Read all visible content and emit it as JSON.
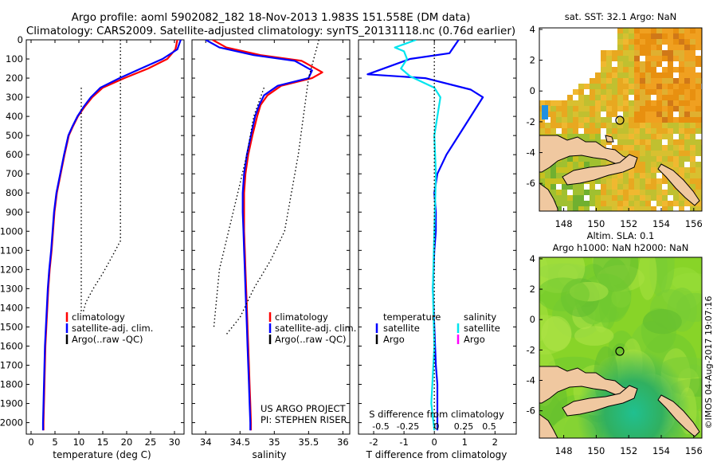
{
  "header": {
    "line1": "Argo profile: aoml 5902082_182 18-Nov-2013 1.983S 151.558E (DM data)",
    "line2": "Climatology: CARS2009. Satellite-adjusted climatology: synTS_20131118.nc (0.76d earlier)"
  },
  "side_stamp": "©IMOS 04-Aug-2017 19:07:16",
  "colors": {
    "climatology": "#ff0000",
    "satellite": "#0000ff",
    "argo": "#000000",
    "sal_satellite": "#00e5ee",
    "sal_argo": "#ff00ff",
    "land": "#f0c8a0",
    "nodata": "#ffffff"
  },
  "chart_data": [
    {
      "id": "temperature",
      "type": "line",
      "xlabel": "temperature (deg C)",
      "ylabel": "",
      "xlim": [
        -1,
        32
      ],
      "ylim": [
        2060,
        0
      ],
      "xticks": [
        0,
        5,
        10,
        15,
        20,
        25,
        30
      ],
      "yticks": [
        0,
        100,
        200,
        300,
        400,
        500,
        600,
        700,
        800,
        900,
        1000,
        1100,
        1200,
        1300,
        1400,
        1500,
        1600,
        1700,
        1800,
        1900,
        2000
      ],
      "legend": [
        "climatology",
        "satellite-adj. clim.",
        "Argo(..raw -QC)"
      ],
      "series": [
        {
          "name": "climatology",
          "color": "#ff0000",
          "points": [
            [
              30.6,
              0
            ],
            [
              30.2,
              50
            ],
            [
              28.5,
              100
            ],
            [
              24.5,
              150
            ],
            [
              19.5,
              200
            ],
            [
              15.0,
              250
            ],
            [
              12.8,
              300
            ],
            [
              11.2,
              350
            ],
            [
              9.8,
              400
            ],
            [
              8.8,
              450
            ],
            [
              7.9,
              500
            ],
            [
              7.0,
              600
            ],
            [
              6.2,
              700
            ],
            [
              5.4,
              800
            ],
            [
              4.9,
              900
            ],
            [
              4.6,
              1000
            ],
            [
              4.3,
              1100
            ],
            [
              3.9,
              1200
            ],
            [
              3.6,
              1300
            ],
            [
              3.4,
              1400
            ],
            [
              3.2,
              1500
            ],
            [
              3.0,
              1600
            ],
            [
              2.9,
              1700
            ],
            [
              2.8,
              1800
            ],
            [
              2.7,
              1900
            ],
            [
              2.6,
              2000
            ],
            [
              2.6,
              2040
            ]
          ]
        },
        {
          "name": "satellite-adj. clim.",
          "color": "#0000ff",
          "points": [
            [
              31.3,
              0
            ],
            [
              30.6,
              50
            ],
            [
              27.5,
              100
            ],
            [
              23.0,
              150
            ],
            [
              18.5,
              200
            ],
            [
              14.5,
              250
            ],
            [
              12.5,
              300
            ],
            [
              11.0,
              350
            ],
            [
              9.7,
              400
            ],
            [
              8.7,
              450
            ],
            [
              7.8,
              500
            ],
            [
              6.9,
              600
            ],
            [
              6.1,
              700
            ],
            [
              5.3,
              800
            ],
            [
              4.8,
              900
            ],
            [
              4.5,
              1000
            ],
            [
              4.2,
              1100
            ],
            [
              3.8,
              1200
            ],
            [
              3.5,
              1300
            ],
            [
              3.3,
              1400
            ],
            [
              3.1,
              1500
            ],
            [
              2.9,
              1600
            ],
            [
              2.8,
              1700
            ],
            [
              2.7,
              1800
            ],
            [
              2.6,
              1900
            ],
            [
              2.5,
              2000
            ],
            [
              2.5,
              2040
            ]
          ]
        },
        {
          "name": "Argo raw-QC bound",
          "color": "#000000",
          "dotted": true,
          "points": [
            [
              18.7,
              0
            ],
            [
              18.7,
              1050
            ],
            [
              17.0,
              1130
            ],
            [
              15.0,
              1220
            ],
            [
              13.0,
              1300
            ],
            [
              11.5,
              1370
            ],
            [
              10.8,
              1430
            ]
          ]
        },
        {
          "name": "Argo raw-QC bound",
          "color": "#000000",
          "dotted": true,
          "points": [
            [
              10.5,
              250
            ],
            [
              10.5,
              1430
            ]
          ]
        }
      ]
    },
    {
      "id": "salinity",
      "type": "line",
      "xlabel": "salinity",
      "ylabel": "",
      "xlim": [
        33.8,
        36.1
      ],
      "ylim": [
        2060,
        0
      ],
      "xticks": [
        34,
        34.5,
        35,
        35.5,
        36
      ],
      "legend": [
        "climatology",
        "satellite-adj. clim.",
        "Argo(..raw -QC)"
      ],
      "annotations": [
        "US ARGO PROJECT",
        "PI: STEPHEN RISER"
      ],
      "series": [
        {
          "name": "climatology",
          "color": "#ff0000",
          "points": [
            [
              34.1,
              0
            ],
            [
              34.3,
              40
            ],
            [
              34.8,
              80
            ],
            [
              35.4,
              110
            ],
            [
              35.7,
              170
            ],
            [
              35.55,
              200
            ],
            [
              35.1,
              240
            ],
            [
              34.9,
              290
            ],
            [
              34.8,
              340
            ],
            [
              34.75,
              400
            ],
            [
              34.68,
              500
            ],
            [
              34.62,
              600
            ],
            [
              34.58,
              700
            ],
            [
              34.56,
              800
            ],
            [
              34.56,
              900
            ],
            [
              34.56,
              1000
            ],
            [
              34.57,
              1100
            ],
            [
              34.58,
              1200
            ],
            [
              34.59,
              1300
            ],
            [
              34.6,
              1400
            ],
            [
              34.61,
              1500
            ],
            [
              34.62,
              1600
            ],
            [
              34.63,
              1700
            ],
            [
              34.64,
              1800
            ],
            [
              34.65,
              1900
            ],
            [
              34.66,
              2000
            ],
            [
              34.66,
              2040
            ]
          ]
        },
        {
          "name": "satellite-adj. clim.",
          "color": "#0000ff",
          "points": [
            [
              34.0,
              0
            ],
            [
              34.2,
              40
            ],
            [
              34.7,
              80
            ],
            [
              35.3,
              110
            ],
            [
              35.55,
              160
            ],
            [
              35.5,
              200
            ],
            [
              35.05,
              240
            ],
            [
              34.85,
              290
            ],
            [
              34.78,
              340
            ],
            [
              34.72,
              400
            ],
            [
              34.66,
              500
            ],
            [
              34.6,
              600
            ],
            [
              34.56,
              700
            ],
            [
              34.54,
              800
            ],
            [
              34.54,
              900
            ],
            [
              34.55,
              1000
            ],
            [
              34.56,
              1100
            ],
            [
              34.57,
              1200
            ],
            [
              34.58,
              1300
            ],
            [
              34.59,
              1400
            ],
            [
              34.6,
              1500
            ],
            [
              34.61,
              1600
            ],
            [
              34.62,
              1700
            ],
            [
              34.63,
              1800
            ],
            [
              34.64,
              1900
            ],
            [
              34.65,
              2000
            ],
            [
              34.65,
              2040
            ]
          ]
        },
        {
          "name": "Argo raw-QC bound",
          "color": "#000000",
          "dotted": true,
          "points": [
            [
              35.65,
              0
            ],
            [
              35.5,
              200
            ],
            [
              35.35,
              600
            ],
            [
              35.25,
              800
            ],
            [
              35.15,
              1000
            ],
            [
              34.95,
              1150
            ],
            [
              34.7,
              1300
            ],
            [
              34.5,
              1450
            ],
            [
              34.3,
              1540
            ]
          ]
        },
        {
          "name": "Argo raw-QC bound",
          "color": "#000000",
          "dotted": true,
          "points": [
            [
              34.85,
              250
            ],
            [
              34.7,
              400
            ],
            [
              34.6,
              600
            ],
            [
              34.4,
              900
            ],
            [
              34.2,
              1200
            ],
            [
              34.12,
              1500
            ]
          ]
        }
      ]
    },
    {
      "id": "difference",
      "type": "line",
      "xlabel": "T difference from climatology",
      "top_label": "S difference from climatology",
      "xlim": [
        -2.5,
        2.7
      ],
      "ylim": [
        2060,
        0
      ],
      "xticks": [
        -2,
        -1,
        0,
        1,
        2
      ],
      "sticks": [
        "-0.5",
        "-0.25",
        "0",
        "0.25",
        "0.5"
      ],
      "legend_temperature": [
        "temperature",
        "satellite",
        "Argo"
      ],
      "legend_salinity": [
        "salinity",
        "satellite",
        "Argo"
      ],
      "series": [
        {
          "name": "T satellite",
          "color": "#0000ff",
          "points": [
            [
              0.8,
              0
            ],
            [
              0.5,
              70
            ],
            [
              -0.8,
              100
            ],
            [
              -2.2,
              180
            ],
            [
              -0.3,
              200
            ],
            [
              1.2,
              260
            ],
            [
              1.6,
              300
            ],
            [
              1.2,
              400
            ],
            [
              0.8,
              500
            ],
            [
              0.4,
              600
            ],
            [
              0.1,
              700
            ],
            [
              0.0,
              800
            ],
            [
              0.05,
              900
            ],
            [
              0.05,
              1000
            ],
            [
              0.0,
              1100
            ],
            [
              -0.05,
              1300
            ],
            [
              0.0,
              1500
            ],
            [
              0.05,
              1700
            ],
            [
              0.1,
              1800
            ],
            [
              0.1,
              2040
            ]
          ]
        },
        {
          "name": "S satellite",
          "color": "#00e5ee",
          "points": [
            [
              -0.6,
              0
            ],
            [
              -1.3,
              40
            ],
            [
              -1.0,
              60
            ],
            [
              -0.9,
              100
            ],
            [
              -1.1,
              150
            ],
            [
              -0.8,
              190
            ],
            [
              0.0,
              250
            ],
            [
              0.2,
              300
            ],
            [
              0.1,
              400
            ],
            [
              0.0,
              500
            ],
            [
              0.05,
              700
            ],
            [
              0.0,
              1000
            ],
            [
              -0.05,
              1300
            ],
            [
              0.0,
              1600
            ],
            [
              -0.1,
              1900
            ],
            [
              0.0,
              2040
            ]
          ]
        },
        {
          "name": "zero",
          "color": "#000000",
          "dotted": true,
          "points": [
            [
              0,
              0
            ],
            [
              0,
              2040
            ]
          ]
        }
      ]
    },
    {
      "id": "sst_map",
      "type": "heatmap",
      "title": "sat. SST: 32.1  Argo: NaN",
      "xlim": [
        146.5,
        156.5
      ],
      "ylim": [
        -7.8,
        4.1
      ],
      "xticks": [
        "148",
        "150",
        "152",
        "154",
        "156"
      ],
      "yticks": [
        "4",
        "2",
        "0",
        "-2",
        "-4",
        "-6"
      ],
      "marker": [
        151.558,
        -1.983
      ]
    },
    {
      "id": "sla_map",
      "type": "heatmap",
      "title": "Altim. SLA: 0.1",
      "subtitle": "Argo h1000: NaN h2000: NaN",
      "xlim": [
        146.5,
        156.5
      ],
      "ylim": [
        -7.8,
        4.1
      ],
      "xticks": [
        "148",
        "150",
        "152",
        "154",
        "156"
      ],
      "yticks": [
        "4",
        "2",
        "0",
        "-2",
        "-4",
        "-6"
      ],
      "marker": [
        151.558,
        -1.983
      ]
    }
  ]
}
